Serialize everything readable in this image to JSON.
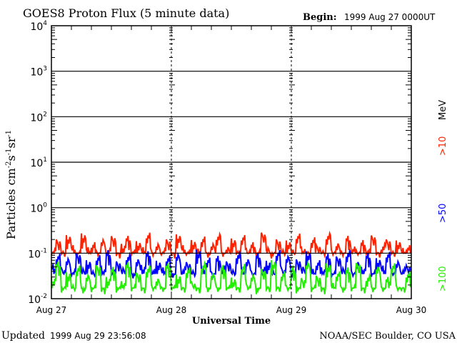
{
  "chart_data": {
    "type": "line",
    "title": "GOES8 Proton Flux (5 minute data)",
    "begin_label": "Begin:",
    "begin_value": "1999 Aug 27 0000UT",
    "xlabel": "Universal Time",
    "ylabel_main": "Particles cm",
    "ylabel_exp1": "-2",
    "ylabel_s": "s",
    "ylabel_exp2": "-1",
    "ylabel_sr": "sr",
    "ylabel_exp3": "-1",
    "x_tick_labels": [
      "Aug 27",
      "Aug 28",
      "Aug 29",
      "Aug 30"
    ],
    "x_range_hours": [
      0,
      72
    ],
    "y_scale": "log",
    "ylim": [
      0.01,
      10000
    ],
    "y_tick_exponents": [
      "4",
      "3",
      "2",
      "1",
      "0",
      "-1",
      "-2"
    ],
    "y_tick_base": "10",
    "grid": true,
    "energy_unit": "MeV",
    "series": [
      {
        "name": ">10",
        "color": "#ff2200",
        "values": [
          0.13,
          0.22,
          0.12,
          0.25,
          0.15,
          0.11,
          0.28,
          0.14,
          0.18,
          0.12,
          0.21,
          0.13,
          0.26,
          0.11,
          0.16,
          0.24,
          0.12,
          0.19,
          0.14,
          0.29,
          0.12,
          0.17,
          0.13,
          0.22,
          0.11,
          0.26,
          0.15,
          0.12,
          0.2,
          0.13,
          0.24,
          0.11,
          0.17,
          0.28,
          0.12,
          0.15,
          0.21,
          0.11,
          0.25,
          0.13,
          0.18,
          0.12,
          0.3,
          0.14,
          0.11,
          0.22,
          0.13,
          0.19,
          0.12,
          0.27,
          0.14,
          0.11,
          0.23,
          0.16,
          0.12,
          0.29,
          0.13,
          0.18,
          0.11,
          0.24,
          0.14,
          0.12,
          0.2,
          0.13,
          0.26,
          0.11,
          0.17,
          0.22,
          0.12,
          0.19,
          0.13,
          0.15
        ]
      },
      {
        "name": ">50",
        "color": "#0000ff",
        "values": [
          0.06,
          0.1,
          0.05,
          0.08,
          0.045,
          0.11,
          0.05,
          0.07,
          0.04,
          0.09,
          0.05,
          0.12,
          0.045,
          0.07,
          0.05,
          0.1,
          0.04,
          0.08,
          0.055,
          0.11,
          0.045,
          0.07,
          0.05,
          0.09,
          0.04,
          0.1,
          0.05,
          0.07,
          0.045,
          0.12,
          0.05,
          0.08,
          0.04,
          0.09,
          0.055,
          0.07,
          0.045,
          0.11,
          0.05,
          0.08,
          0.04,
          0.1,
          0.05,
          0.07,
          0.045,
          0.12,
          0.05,
          0.09,
          0.04,
          0.08,
          0.055,
          0.11,
          0.045,
          0.07,
          0.05,
          0.1,
          0.04,
          0.09,
          0.05,
          0.12,
          0.045,
          0.07,
          0.05,
          0.1,
          0.04,
          0.08,
          0.055,
          0.11,
          0.045,
          0.07,
          0.05,
          0.06
        ]
      },
      {
        "name": ">100",
        "color": "#22ee00",
        "values": [
          0.03,
          0.065,
          0.018,
          0.04,
          0.02,
          0.055,
          0.018,
          0.035,
          0.02,
          0.06,
          0.018,
          0.03,
          0.05,
          0.018,
          0.025,
          0.065,
          0.02,
          0.04,
          0.018,
          0.055,
          0.022,
          0.03,
          0.018,
          0.06,
          0.02,
          0.035,
          0.018,
          0.05,
          0.025,
          0.018,
          0.065,
          0.02,
          0.04,
          0.018,
          0.055,
          0.02,
          0.03,
          0.018,
          0.06,
          0.022,
          0.035,
          0.018,
          0.05,
          0.02,
          0.07,
          0.018,
          0.04,
          0.02,
          0.055,
          0.018,
          0.03,
          0.065,
          0.02,
          0.035,
          0.018,
          0.06,
          0.022,
          0.04,
          0.018,
          0.05,
          0.02,
          0.065,
          0.018,
          0.035,
          0.02,
          0.055,
          0.018,
          0.03,
          0.06,
          0.02,
          0.018,
          0.04
        ]
      }
    ]
  },
  "footer": {
    "updated_label": "Updated",
    "updated_value": "1999 Aug 29 23:56:08",
    "credit": "NOAA/SEC Boulder, CO USA"
  }
}
